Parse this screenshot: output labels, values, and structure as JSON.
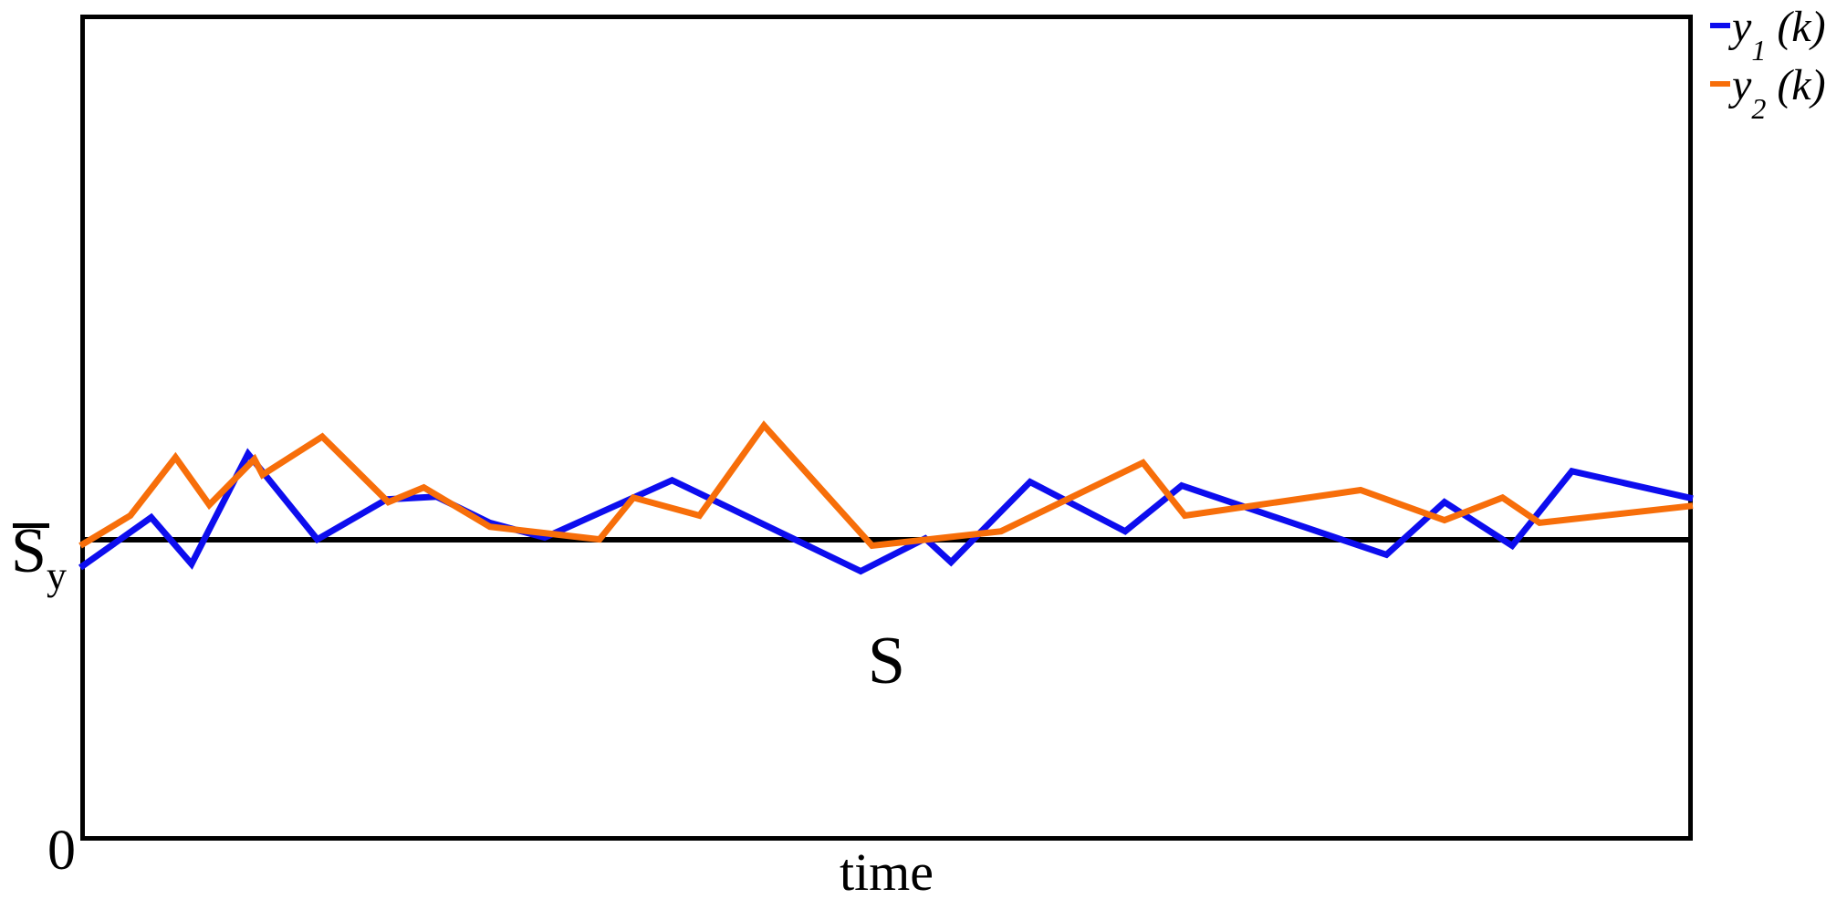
{
  "chart_data": {
    "type": "line",
    "title": "",
    "xlabel": "time",
    "ylabel": "S̄_y",
    "origin_tick": "0",
    "region_label": "S",
    "baseline_label": {
      "main": "S",
      "sub": "y",
      "overline": true
    },
    "baseline_value": 1.0,
    "x_domain": [
      0,
      1
    ],
    "x_units": "normalized time (no numeric ticks shown)",
    "y_units": "value relative to baseline S̄_y = 1.0; axis origin = 0",
    "ylim": [
      0,
      2.75
    ],
    "grid": false,
    "legend": {
      "position": "top-right-outside",
      "items": [
        {
          "var": "y",
          "sub": "1",
          "suffix": "(k)"
        },
        {
          "var": "y",
          "sub": "2",
          "suffix": "(k)"
        }
      ]
    },
    "series": [
      {
        "name": "y1(k)",
        "color": "#0d0dee",
        "x": [
          0.0,
          0.044,
          0.069,
          0.104,
          0.147,
          0.19,
          0.221,
          0.254,
          0.288,
          0.367,
          0.484,
          0.524,
          0.54,
          0.589,
          0.648,
          0.683,
          0.81,
          0.846,
          0.888,
          0.925,
          1.0
        ],
        "y": [
          0.909,
          1.076,
          0.921,
          1.288,
          1.003,
          1.136,
          1.145,
          1.058,
          1.009,
          1.2,
          0.897,
          1.006,
          0.927,
          1.194,
          1.03,
          1.182,
          0.952,
          1.127,
          0.982,
          1.23,
          1.139
        ]
      },
      {
        "name": "y2(k)",
        "color": "#f76e0a",
        "x": [
          0.0,
          0.031,
          0.059,
          0.08,
          0.108,
          0.113,
          0.15,
          0.191,
          0.213,
          0.254,
          0.322,
          0.343,
          0.384,
          0.424,
          0.491,
          0.571,
          0.659,
          0.685,
          0.794,
          0.846,
          0.882,
          0.905,
          1.0
        ],
        "y": [
          0.982,
          1.082,
          1.276,
          1.118,
          1.27,
          1.218,
          1.345,
          1.127,
          1.176,
          1.045,
          1.003,
          1.142,
          1.082,
          1.382,
          0.982,
          1.03,
          1.258,
          1.082,
          1.167,
          1.067,
          1.142,
          1.058,
          1.115
        ]
      }
    ]
  }
}
